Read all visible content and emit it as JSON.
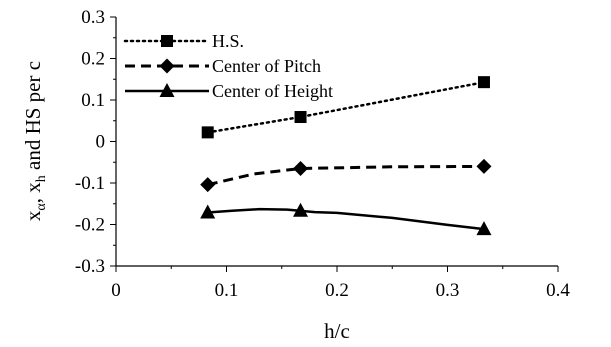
{
  "chart_data": {
    "type": "line",
    "xlabel": "h/c",
    "ylabel_main": "x",
    "ylabel_sub1": "α",
    "ylabel_mid": ", x",
    "ylabel_sub2": "h",
    "ylabel_tail": " and HS per c",
    "xlim": [
      0,
      0.4
    ],
    "ylim": [
      -0.3,
      0.3
    ],
    "x_ticks": [
      0,
      0.1,
      0.2,
      0.3,
      0.4
    ],
    "x_tick_labels": [
      "0",
      "0.1",
      "0.2",
      "0.3",
      "0.4"
    ],
    "y_ticks": [
      0.3,
      0.2,
      0.1,
      0,
      -0.1,
      -0.2,
      -0.3
    ],
    "y_tick_labels": [
      "0.3",
      "0.2",
      "0.1",
      "0",
      "-0.1",
      "-0.2",
      "-0.3"
    ],
    "grid": false,
    "legend_position": "top-left",
    "series": [
      {
        "name": "H.S.",
        "marker": "square",
        "line_style": "dotted",
        "points": [
          [
            0.083,
            0.022
          ],
          [
            0.167,
            0.059
          ],
          [
            0.333,
            0.143
          ]
        ],
        "curve": [
          [
            0.083,
            0.022
          ],
          [
            0.167,
            0.059
          ],
          [
            0.333,
            0.143
          ]
        ]
      },
      {
        "name": "Center of Pitch",
        "marker": "diamond",
        "line_style": "dashed",
        "points": [
          [
            0.083,
            -0.104
          ],
          [
            0.167,
            -0.065
          ],
          [
            0.333,
            -0.06
          ]
        ],
        "curve": [
          [
            0.083,
            -0.104
          ],
          [
            0.125,
            -0.078
          ],
          [
            0.167,
            -0.065
          ],
          [
            0.25,
            -0.061
          ],
          [
            0.333,
            -0.06
          ]
        ]
      },
      {
        "name": "Center of Height",
        "marker": "triangle",
        "line_style": "solid",
        "points": [
          [
            0.083,
            -0.171
          ],
          [
            0.167,
            -0.167
          ],
          [
            0.333,
            -0.211
          ]
        ],
        "curve": [
          [
            0.083,
            -0.171
          ],
          [
            0.105,
            -0.167
          ],
          [
            0.13,
            -0.163
          ],
          [
            0.155,
            -0.164
          ],
          [
            0.18,
            -0.17
          ],
          [
            0.2,
            -0.172
          ],
          [
            0.25,
            -0.184
          ],
          [
            0.3,
            -0.201
          ],
          [
            0.333,
            -0.211
          ]
        ]
      }
    ]
  }
}
